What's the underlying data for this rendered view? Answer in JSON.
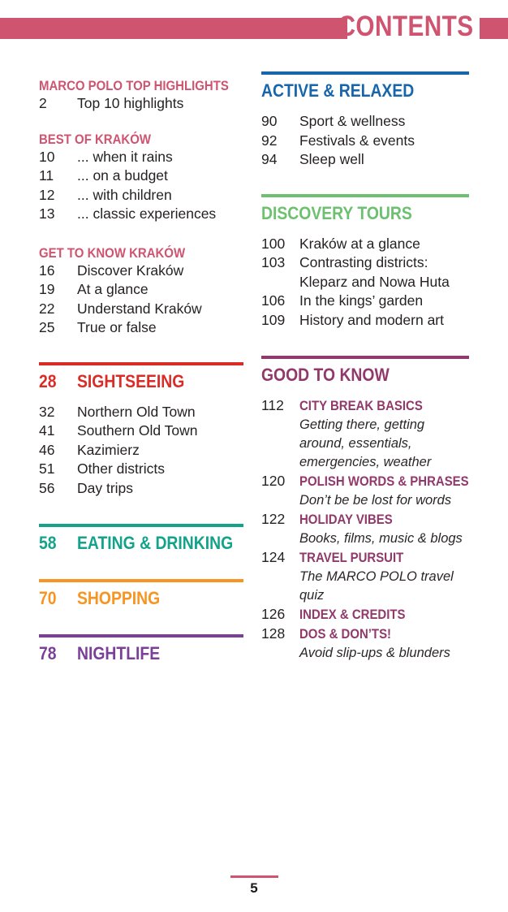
{
  "header": {
    "title": "CONTENTS"
  },
  "colors": {
    "pink": "#ce5470",
    "red": "#da2c27",
    "teal": "#13a28a",
    "orange": "#f79422",
    "purple": "#7b3f98",
    "blue": "#1765ab",
    "green": "#6cc06f",
    "plum": "#90396a",
    "body_text": "#262223"
  },
  "left": {
    "intro_sections": [
      {
        "heading": "MARCO POLO TOP HIGHLIGHTS",
        "items": [
          {
            "num": "2",
            "label": "Top 10 highlights"
          }
        ]
      },
      {
        "heading": "BEST OF KRAKÓW",
        "items": [
          {
            "num": "10",
            "label": "... when it rains"
          },
          {
            "num": "11",
            "label": "... on a budget"
          },
          {
            "num": "12",
            "label": "... with children"
          },
          {
            "num": "13",
            "label": "... classic experiences"
          }
        ]
      },
      {
        "heading": "GET TO KNOW KRAKÓW",
        "items": [
          {
            "num": "16",
            "label": "Discover Kraków"
          },
          {
            "num": "19",
            "label": "At a glance"
          },
          {
            "num": "22",
            "label": "Understand Kraków"
          },
          {
            "num": "25",
            "label": "True or false"
          }
        ]
      }
    ],
    "chapters": [
      {
        "num": "28",
        "title": "SIGHTSEEING",
        "color": "#da2c27",
        "items": [
          {
            "num": "32",
            "label": "Northern Old Town"
          },
          {
            "num": "41",
            "label": "Southern Old Town"
          },
          {
            "num": "46",
            "label": "Kazimierz"
          },
          {
            "num": "51",
            "label": "Other districts"
          },
          {
            "num": "56",
            "label": "Day trips"
          }
        ]
      },
      {
        "num": "58",
        "title": "EATING & DRINKING",
        "color": "#13a28a",
        "items": []
      },
      {
        "num": "70",
        "title": "SHOPPING",
        "color": "#f79422",
        "items": []
      },
      {
        "num": "78",
        "title": "NIGHTLIFE",
        "color": "#7b3f98",
        "items": []
      }
    ]
  },
  "right": {
    "sections": [
      {
        "title": "ACTIVE & RELAXED",
        "color": "#1765ab",
        "items": [
          {
            "num": "90",
            "label": "Sport & wellness"
          },
          {
            "num": "92",
            "label": "Festivals & events"
          },
          {
            "num": "94",
            "label": "Sleep well"
          }
        ]
      },
      {
        "title": "DISCOVERY TOURS",
        "color": "#6cc06f",
        "items": [
          {
            "num": "100",
            "label": "Kraków at a glance"
          },
          {
            "num": "103",
            "label": "Contrasting districts: Kleparz and Nowa Huta"
          },
          {
            "num": "106",
            "label": "In the kings’ garden"
          },
          {
            "num": "109",
            "label": "History and modern art"
          }
        ]
      },
      {
        "title": "GOOD TO KNOW",
        "color": "#90396a",
        "entries": [
          {
            "num": "112",
            "title": "CITY BREAK BASICS",
            "desc": "Getting there, getting around, essentials, emergencies, weather"
          },
          {
            "num": "120",
            "title": "POLISH WORDS & PHRASES",
            "desc": "Don’t be be lost for words"
          },
          {
            "num": "122",
            "title": "HOLIDAY VIBES",
            "desc": "Books, films, music & blogs"
          },
          {
            "num": "124",
            "title": "TRAVEL PURSUIT",
            "desc": "The MARCO POLO travel quiz"
          },
          {
            "num": "126",
            "title": "INDEX & CREDITS",
            "desc": ""
          },
          {
            "num": "128",
            "title": "DOS & DON’TS!",
            "desc": "Avoid slip-ups & blunders"
          }
        ]
      }
    ]
  },
  "footer": {
    "page_number": "5"
  }
}
